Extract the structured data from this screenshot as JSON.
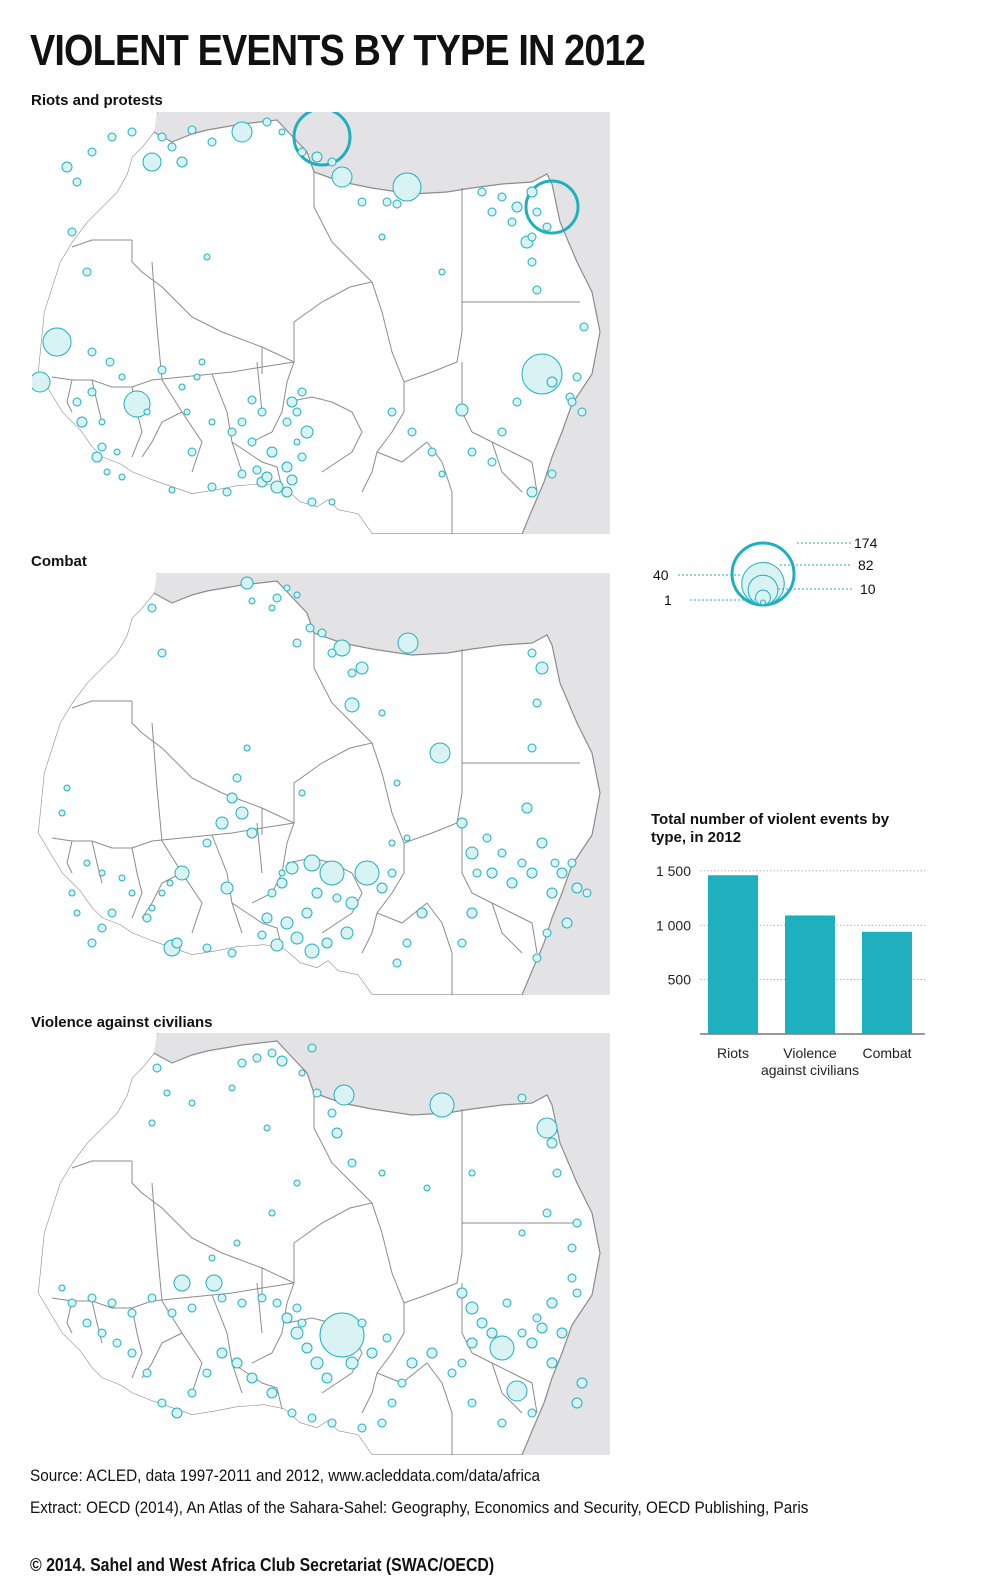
{
  "title": "VIOLENT EVENTS BY TYPE IN 2012",
  "maps": [
    {
      "label": "Riots and protests"
    },
    {
      "label": "Combat"
    },
    {
      "label": "Violence against civilians"
    }
  ],
  "legend": {
    "values": [
      {
        "value": "174",
        "label": "174"
      },
      {
        "value": "82",
        "label": "82"
      },
      {
        "value": "40",
        "label": "40"
      },
      {
        "value": "10",
        "label": "10"
      },
      {
        "value": "1",
        "label": "1"
      }
    ]
  },
  "colors": {
    "accent": "#1fb0bf",
    "circle_fill": "#d9f2f3",
    "land": "#ffffff",
    "outside": "#e3e3e6",
    "border": "#8c8c8c"
  },
  "chart_data": {
    "type": "bar",
    "title": "Total number of violent events by type, in 2012",
    "categories": [
      "Riots",
      "Violence against civilians",
      "Combat"
    ],
    "category_lines": [
      [
        "Riots"
      ],
      [
        "Violence",
        "against civilians"
      ],
      [
        "Combat"
      ]
    ],
    "values": [
      1460,
      1090,
      940
    ],
    "yticks": [
      {
        "value": 500,
        "label": "500"
      },
      {
        "value": 1000,
        "label": "1 000"
      },
      {
        "value": 1500,
        "label": "1 500"
      }
    ],
    "ylim": [
      0,
      1600
    ],
    "grid": true,
    "color": "#1fb0bf"
  },
  "footer": {
    "source": "Source: ACLED, data 1997-2011 and 2012, www.acleddata.com/data/africa",
    "extract": "Extract: OECD (2014), An Atlas of the Sahara-Sahel: Geography, Economics  and Security, OECD Publishing, Paris",
    "copyright": "© 2014. Sahel and West Africa Club Secretariat (SWAC/OECD)"
  }
}
